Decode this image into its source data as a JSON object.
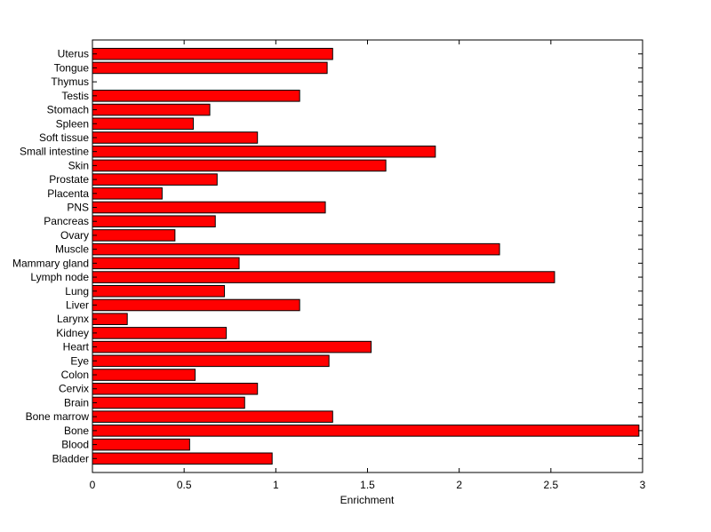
{
  "chart_data": {
    "type": "bar",
    "orientation": "horizontal",
    "title": "",
    "xlabel": "Enrichment",
    "ylabel": "",
    "xlim": [
      0,
      3
    ],
    "xticks": [
      0,
      0.5,
      1,
      1.5,
      2,
      2.5,
      3
    ],
    "xtick_labels": [
      "0",
      "0.5",
      "1",
      "1.5",
      "2",
      "2.5",
      "3"
    ],
    "grid": false,
    "legend": "none",
    "bar_color": "#ff0000",
    "categories": [
      "Bladder",
      "Blood",
      "Bone",
      "Bone marrow",
      "Brain",
      "Cervix",
      "Colon",
      "Eye",
      "Heart",
      "Kidney",
      "Larynx",
      "Liver",
      "Lung",
      "Lymph node",
      "Mammary gland",
      "Muscle",
      "Ovary",
      "Pancreas",
      "PNS",
      "Placenta",
      "Prostate",
      "Skin",
      "Small intestine",
      "Soft tissue",
      "Spleen",
      "Stomach",
      "Testis",
      "Thymus",
      "Tongue",
      "Uterus"
    ],
    "values": [
      0.98,
      0.53,
      2.98,
      1.31,
      0.83,
      0.9,
      0.56,
      1.29,
      1.52,
      0.73,
      0.19,
      1.13,
      0.72,
      2.52,
      0.8,
      2.22,
      0.45,
      0.67,
      1.27,
      0.38,
      0.68,
      1.6,
      1.87,
      0.9,
      0.55,
      0.64,
      1.13,
      0,
      1.28,
      1.31
    ]
  }
}
